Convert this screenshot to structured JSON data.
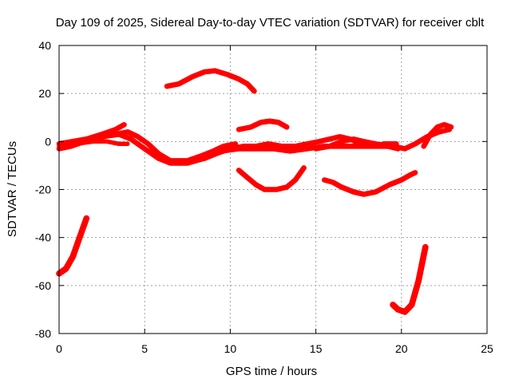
{
  "chart_data": {
    "type": "line",
    "title": "Day 109 of 2025, Sidereal Day-to-day VTEC variation (SDTVAR) for receiver cblt",
    "xlabel": "GPS time / hours",
    "ylabel": "SDTVAR / TECUs",
    "xlim": [
      0,
      25
    ],
    "ylim": [
      -80,
      40
    ],
    "xticks": [
      0,
      5,
      10,
      15,
      20,
      25
    ],
    "yticks": [
      -80,
      -60,
      -40,
      -20,
      0,
      20,
      40
    ],
    "xtick_labels": [
      "0",
      "5",
      "10",
      "15",
      "20",
      "25"
    ],
    "ytick_labels": [
      "-80",
      "-60",
      "-40",
      "-20",
      "0",
      "20",
      "40"
    ],
    "grid": true,
    "legend": "none",
    "color": "#ff0000",
    "series": [
      {
        "name": "track-a",
        "thickness": 3,
        "points": [
          [
            0,
            -3
          ],
          [
            0.7,
            -2
          ],
          [
            1.5,
            0
          ],
          [
            2.5,
            2
          ],
          [
            3.5,
            3
          ],
          [
            4.2,
            1
          ],
          [
            5,
            -3
          ],
          [
            5.8,
            -7
          ],
          [
            6.5,
            -9
          ],
          [
            7.5,
            -9
          ],
          [
            8.5,
            -7
          ],
          [
            9.5,
            -4
          ],
          [
            10.5,
            -3
          ],
          [
            11.5,
            -3
          ],
          [
            12.5,
            -3
          ],
          [
            13.5,
            -4
          ],
          [
            14.5,
            -3
          ],
          [
            15.5,
            -2
          ],
          [
            16.5,
            -2
          ],
          [
            17.5,
            -2
          ],
          [
            18.5,
            -2
          ],
          [
            19.5,
            -2
          ],
          [
            20.2,
            -3
          ],
          [
            20.8,
            -1
          ],
          [
            21.5,
            2
          ],
          [
            22.2,
            4
          ],
          [
            22.8,
            5
          ]
        ]
      },
      {
        "name": "track-b",
        "thickness": 3,
        "points": [
          [
            0,
            -1
          ],
          [
            0.8,
            0
          ],
          [
            1.6,
            1
          ],
          [
            2.5,
            3
          ],
          [
            3.3,
            5
          ],
          [
            3.8,
            7
          ]
        ]
      },
      {
        "name": "track-c",
        "thickness": 2.5,
        "points": [
          [
            0,
            -2
          ],
          [
            1,
            -1
          ],
          [
            2,
            0
          ],
          [
            2.8,
            0
          ],
          [
            3.5,
            -1
          ],
          [
            4,
            -1
          ]
        ]
      },
      {
        "name": "track-d",
        "thickness": 3,
        "points": [
          [
            3.3,
            3
          ],
          [
            4,
            4
          ],
          [
            4.6,
            2
          ],
          [
            5.2,
            -1
          ],
          [
            5.8,
            -5
          ],
          [
            6.5,
            -8
          ],
          [
            7.5,
            -8
          ],
          [
            8.3,
            -6
          ],
          [
            9,
            -4
          ],
          [
            9.6,
            -2
          ],
          [
            10.3,
            -1
          ]
        ]
      },
      {
        "name": "track-e",
        "thickness": 3,
        "points": [
          [
            7,
            -9
          ],
          [
            7.8,
            -8
          ],
          [
            8.5,
            -7
          ],
          [
            9.2,
            -5
          ],
          [
            10,
            -3
          ],
          [
            10.8,
            -2
          ],
          [
            11.5,
            -2
          ],
          [
            12.2,
            -1
          ],
          [
            13,
            -2
          ],
          [
            13.8,
            -2
          ],
          [
            14.5,
            -1
          ],
          [
            15.2,
            0
          ],
          [
            15.8,
            1
          ],
          [
            16.4,
            2
          ],
          [
            17,
            1
          ],
          [
            17.6,
            -1
          ],
          [
            18.3,
            -2
          ],
          [
            19,
            -1
          ],
          [
            19.7,
            -1
          ]
        ]
      },
      {
        "name": "track-f",
        "thickness": 3,
        "points": [
          [
            15,
            -3
          ],
          [
            15.8,
            -2
          ],
          [
            16.5,
            0
          ],
          [
            17.2,
            1
          ],
          [
            17.8,
            0
          ],
          [
            18.5,
            -1
          ],
          [
            19.2,
            -2
          ],
          [
            19.8,
            -3
          ]
        ]
      },
      {
        "name": "track-g",
        "thickness": 3,
        "points": [
          [
            6.3,
            23
          ],
          [
            7,
            24
          ],
          [
            7.8,
            27
          ],
          [
            8.5,
            29
          ],
          [
            9.1,
            29.5
          ],
          [
            9.8,
            28
          ],
          [
            10.5,
            26
          ],
          [
            11,
            24
          ],
          [
            11.4,
            21
          ]
        ]
      },
      {
        "name": "track-h",
        "thickness": 3,
        "points": [
          [
            10.5,
            5
          ],
          [
            11.2,
            6
          ],
          [
            11.8,
            8
          ],
          [
            12.3,
            8.5
          ],
          [
            12.8,
            8
          ],
          [
            13.3,
            6
          ]
        ]
      },
      {
        "name": "track-i",
        "thickness": 3,
        "points": [
          [
            10.5,
            -12
          ],
          [
            11,
            -15
          ],
          [
            11.5,
            -18
          ],
          [
            12,
            -20
          ],
          [
            12.7,
            -20
          ],
          [
            13.3,
            -19
          ],
          [
            13.8,
            -16
          ],
          [
            14.3,
            -11
          ]
        ]
      },
      {
        "name": "track-j",
        "thickness": 3,
        "points": [
          [
            15.5,
            -16
          ],
          [
            16,
            -17
          ],
          [
            16.5,
            -19
          ],
          [
            17.2,
            -21
          ],
          [
            17.8,
            -22
          ],
          [
            18.5,
            -21
          ],
          [
            19.3,
            -18
          ],
          [
            20,
            -16
          ],
          [
            20.5,
            -14
          ],
          [
            20.8,
            -13
          ]
        ]
      },
      {
        "name": "track-k",
        "thickness": 3,
        "points": [
          [
            21.3,
            -2
          ],
          [
            21.7,
            3
          ],
          [
            22.1,
            6
          ],
          [
            22.5,
            7
          ],
          [
            22.9,
            6
          ]
        ]
      },
      {
        "name": "track-l",
        "thickness": 3.5,
        "points": [
          [
            0,
            -55
          ],
          [
            0.4,
            -53
          ],
          [
            0.8,
            -48
          ],
          [
            1.2,
            -40
          ],
          [
            1.6,
            -32
          ]
        ]
      },
      {
        "name": "track-m",
        "thickness": 3.5,
        "points": [
          [
            19.5,
            -68
          ],
          [
            19.8,
            -70
          ],
          [
            20.2,
            -71
          ],
          [
            20.6,
            -68
          ],
          [
            21,
            -58
          ],
          [
            21.4,
            -44
          ]
        ]
      }
    ]
  }
}
